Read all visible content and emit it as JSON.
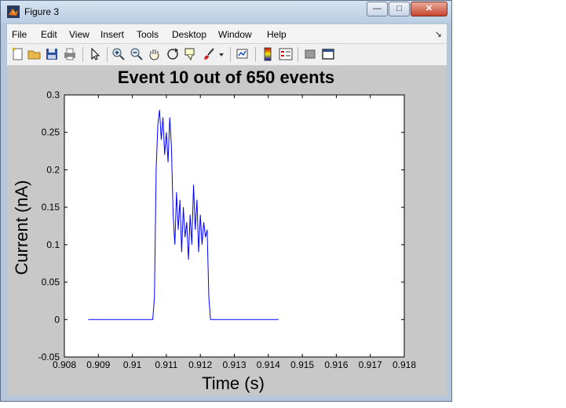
{
  "window": {
    "title": "Figure 3",
    "controls": {
      "minimize": "—",
      "maximize": "□",
      "close": "✕"
    }
  },
  "menu": {
    "items": [
      "File",
      "Edit",
      "View",
      "Insert",
      "Tools",
      "Desktop",
      "Window",
      "Help"
    ],
    "arrow": "↘"
  },
  "toolbar": {
    "icons": [
      "new-figure-icon",
      "open-file-icon",
      "save-icon",
      "print-icon",
      "edit-plot-arrow-icon",
      "zoom-in-icon",
      "zoom-out-icon",
      "pan-hand-icon",
      "rotate-3d-icon",
      "data-cursor-icon",
      "brush-icon",
      "brush-dropdown-icon",
      "link-plot-icon",
      "insert-colorbar-icon",
      "insert-legend-icon",
      "hide-plot-tools-icon",
      "show-plot-tools-icon"
    ]
  },
  "chart_data": {
    "type": "line",
    "title": "Event 10 out of 650 events",
    "xlabel": "Time (s)",
    "ylabel": "Current (nA)",
    "xlim": [
      0.908,
      0.918
    ],
    "ylim": [
      -0.05,
      0.3
    ],
    "xticks": [
      "0.908",
      "0.909",
      "0.91",
      "0.911",
      "0.912",
      "0.913",
      "0.914",
      "0.915",
      "0.916",
      "0.917",
      "0.918"
    ],
    "yticks": [
      "-0.05",
      "0",
      "0.05",
      "0.1",
      "0.15",
      "0.2",
      "0.25",
      "0.3"
    ],
    "grid": false,
    "series": [
      {
        "color": "#0000ff",
        "x": [
          0.9087,
          0.9106,
          0.91065,
          0.9107,
          0.91075,
          0.9108,
          0.91085,
          0.9109,
          0.91095,
          0.911,
          0.91105,
          0.9111,
          0.91115,
          0.9112,
          0.91125,
          0.9113,
          0.91135,
          0.9114,
          0.91145,
          0.9115,
          0.91155,
          0.9116,
          0.91165,
          0.9117,
          0.91175,
          0.9118,
          0.91185,
          0.9119,
          0.91195,
          0.912,
          0.91205,
          0.9121,
          0.91215,
          0.9122,
          0.91225,
          0.9123,
          0.9143
        ],
        "y": [
          0,
          0,
          0.03,
          0.2,
          0.26,
          0.28,
          0.24,
          0.27,
          0.22,
          0.25,
          0.21,
          0.27,
          0.23,
          0.14,
          0.1,
          0.17,
          0.12,
          0.16,
          0.09,
          0.15,
          0.11,
          0.13,
          0.08,
          0.14,
          0.1,
          0.18,
          0.12,
          0.16,
          0.09,
          0.14,
          0.1,
          0.13,
          0.11,
          0.12,
          0.03,
          0,
          0
        ]
      }
    ]
  }
}
